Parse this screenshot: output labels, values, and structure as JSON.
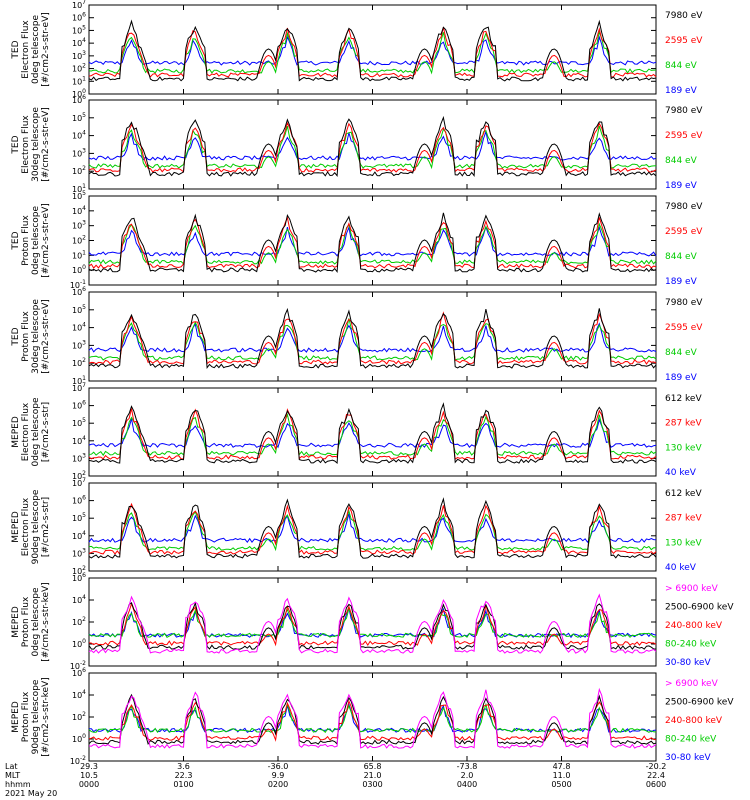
{
  "chart_data": {
    "type": "line",
    "time_axis": {
      "rows": [
        {
          "label": "Lat",
          "values": [
            "29.3",
            "3.6",
            "-36.0",
            "65.8",
            "-73.8",
            "47.8",
            "-20.2"
          ]
        },
        {
          "label": "MLT",
          "values": [
            "10.5",
            "22.3",
            "9.9",
            "21.0",
            "2.0",
            "11.0",
            "22.4"
          ]
        },
        {
          "label": "hhmm",
          "values": [
            "0000",
            "0100",
            "0200",
            "0300",
            "0400",
            "0500",
            "0600"
          ]
        }
      ],
      "date": "2021 May 20",
      "range_hours": [
        0,
        6
      ]
    },
    "panels": [
      {
        "ylabel": [
          "TED",
          "Electron Flux",
          "0deg telescope",
          "[#/cm2-s-str-eV]"
        ],
        "y_exponents": [
          0,
          1,
          2,
          3,
          4,
          5,
          6,
          7
        ],
        "log_scale": true,
        "series": [
          {
            "name": "7980 eV",
            "color": "#000000"
          },
          {
            "name": "2595 eV",
            "color": "#ff0000"
          },
          {
            "name": "844 eV",
            "color": "#00cc00"
          },
          {
            "name": "189 eV",
            "color": "#0000ff"
          }
        ]
      },
      {
        "ylabel": [
          "TED",
          "Electron Flux",
          "30deg telescope",
          "[#/cm2-s-str-eV]"
        ],
        "y_exponents": [
          1,
          2,
          3,
          4,
          5,
          6
        ],
        "log_scale": true,
        "series": [
          {
            "name": "7980 eV",
            "color": "#000000"
          },
          {
            "name": "2595 eV",
            "color": "#ff0000"
          },
          {
            "name": "844 eV",
            "color": "#00cc00"
          },
          {
            "name": "189 eV",
            "color": "#0000ff"
          }
        ]
      },
      {
        "ylabel": [
          "TED",
          "Proton Flux",
          "0deg telescope",
          "[#/cm2-s-str-eV]"
        ],
        "y_exponents": [
          -1,
          0,
          1,
          2,
          3,
          4,
          5
        ],
        "log_scale": true,
        "series": [
          {
            "name": "7980 eV",
            "color": "#000000"
          },
          {
            "name": "2595 eV",
            "color": "#ff0000"
          },
          {
            "name": "844 eV",
            "color": "#00cc00"
          },
          {
            "name": "189 eV",
            "color": "#0000ff"
          }
        ]
      },
      {
        "ylabel": [
          "TED",
          "Proton Flux",
          "30deg telescope",
          "[#/cm2-s-str-eV]"
        ],
        "y_exponents": [
          1,
          2,
          3,
          4,
          5,
          6
        ],
        "log_scale": true,
        "series": [
          {
            "name": "7980 eV",
            "color": "#000000"
          },
          {
            "name": "2595 eV",
            "color": "#ff0000"
          },
          {
            "name": "844 eV",
            "color": "#00cc00"
          },
          {
            "name": "189 eV",
            "color": "#0000ff"
          }
        ]
      },
      {
        "ylabel": [
          "MEPED",
          "Electron Flux",
          "0deg telescope",
          "[#/cm2-s-str]"
        ],
        "y_exponents": [
          2,
          3,
          4,
          5,
          6,
          7
        ],
        "log_scale": true,
        "series": [
          {
            "name": "612 keV",
            "color": "#000000"
          },
          {
            "name": "287 keV",
            "color": "#ff0000"
          },
          {
            "name": "130 keV",
            "color": "#00cc00"
          },
          {
            "name": "40 keV",
            "color": "#0000ff"
          }
        ]
      },
      {
        "ylabel": [
          "MEPED",
          "Electron Flux",
          "90deg telescope",
          "[#/cm2-s-str]"
        ],
        "y_exponents": [
          2,
          3,
          4,
          5,
          6,
          7
        ],
        "log_scale": true,
        "series": [
          {
            "name": "612 keV",
            "color": "#000000"
          },
          {
            "name": "287 keV",
            "color": "#ff0000"
          },
          {
            "name": "130 keV",
            "color": "#00cc00"
          },
          {
            "name": "40 keV",
            "color": "#0000ff"
          }
        ]
      },
      {
        "ylabel": [
          "MEPED",
          "Proton Flux",
          "0deg telescope",
          "[#/cm2-s-str-keV]"
        ],
        "y_exponents": [
          -2,
          0,
          2,
          4,
          6
        ],
        "log_scale": true,
        "series": [
          {
            "name": "> 6900 keV",
            "color": "#ff00ff"
          },
          {
            "name": "2500-6900 keV",
            "color": "#000000"
          },
          {
            "name": "240-800 keV",
            "color": "#ff0000"
          },
          {
            "name": "80-240 keV",
            "color": "#00cc00"
          },
          {
            "name": "30-80 keV",
            "color": "#0000ff"
          }
        ]
      },
      {
        "ylabel": [
          "MEPED",
          "Proton Flux",
          "90deg telescope",
          "[#/cm2-s-str-keV]"
        ],
        "y_exponents": [
          -2,
          0,
          2,
          4,
          6
        ],
        "log_scale": true,
        "series": [
          {
            "name": "> 6900 keV",
            "color": "#ff00ff"
          },
          {
            "name": "2500-6900 keV",
            "color": "#000000"
          },
          {
            "name": "240-800 keV",
            "color": "#ff0000"
          },
          {
            "name": "80-240 keV",
            "color": "#00cc00"
          },
          {
            "name": "30-80 keV",
            "color": "#0000ff"
          }
        ]
      }
    ]
  }
}
